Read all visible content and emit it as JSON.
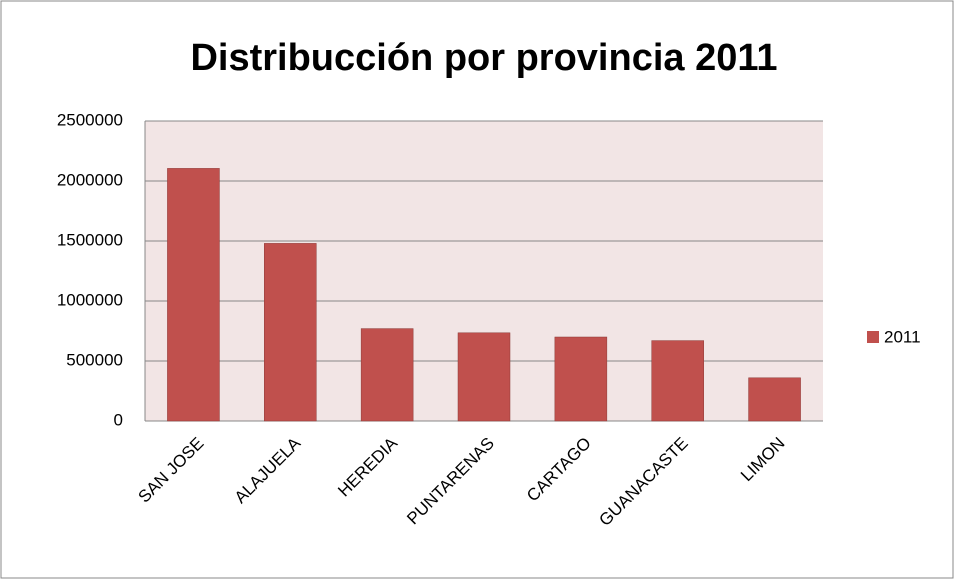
{
  "chart_data": {
    "type": "bar",
    "title": "Distribucción por provincia 2011",
    "categories": [
      "SAN JOSE",
      "ALAJUELA",
      "HEREDIA",
      "PUNTARENAS",
      "CARTAGO",
      "GUANACASTE",
      "LIMON"
    ],
    "series": [
      {
        "name": "2011",
        "color": "#c0504d",
        "values": [
          2105000,
          1480000,
          770000,
          735000,
          700000,
          670000,
          360000
        ]
      }
    ],
    "ylim": [
      0,
      2500000
    ],
    "yticks": [
      0,
      500000,
      1000000,
      1500000,
      2000000,
      2500000
    ],
    "grid": true,
    "legend": "right"
  }
}
